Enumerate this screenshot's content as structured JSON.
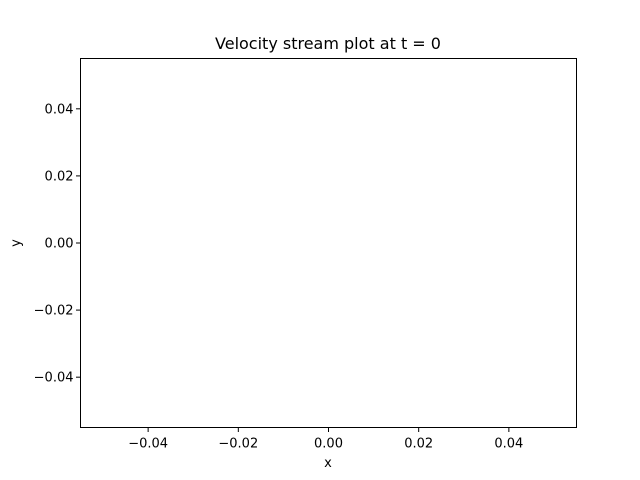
{
  "chart_data": {
    "type": "line",
    "title": "Velocity stream plot at t = 0",
    "xlabel": "x",
    "ylabel": "y",
    "xlim": [
      -0.055,
      0.055
    ],
    "ylim": [
      -0.055,
      0.055
    ],
    "x_ticks": [
      -0.04,
      -0.02,
      0.0,
      0.02,
      0.04
    ],
    "y_ticks": [
      -0.04,
      -0.02,
      0.0,
      0.02,
      0.04
    ],
    "x_tick_labels": [
      "−0.04",
      "−0.02",
      "0.00",
      "0.02",
      "0.04"
    ],
    "y_tick_labels": [
      "−0.04",
      "−0.02",
      "0.00",
      "0.02",
      "0.04"
    ],
    "grid": false,
    "series": []
  }
}
